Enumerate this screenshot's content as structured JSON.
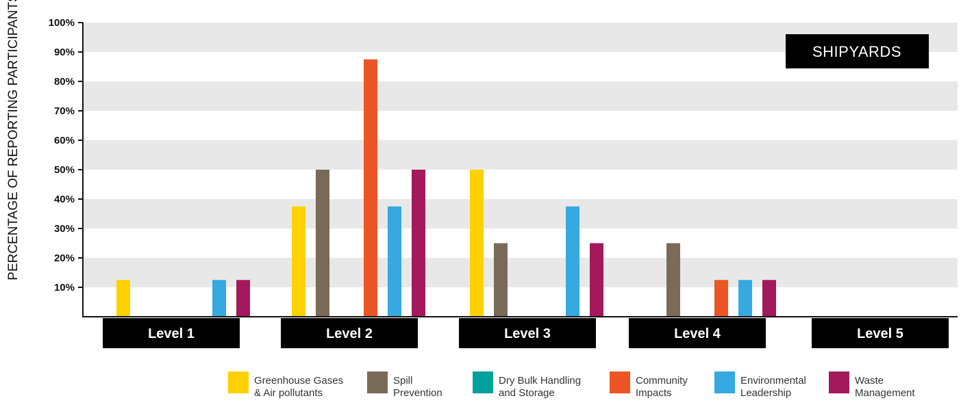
{
  "chart_data": {
    "type": "bar",
    "title": "SHIPYARDS",
    "ylabel": "PERCENTAGE OF REPORTING PARTICIPANTS",
    "ylim": [
      0,
      100
    ],
    "yticks": [
      "10%",
      "20%",
      "30%",
      "40%",
      "50%",
      "60%",
      "70%",
      "80%",
      "90%",
      "100%"
    ],
    "grid": "alternating horizontal bands",
    "legend_position": "bottom",
    "categories": [
      "Level 1",
      "Level 2",
      "Level 3",
      "Level 4",
      "Level 5"
    ],
    "series": [
      {
        "name": "Greenhouse Gases & Air pollutants",
        "legend_lines": [
          "Greenhouse Gases",
          "& Air pollutants"
        ],
        "color": "#FFD100",
        "values": [
          12.5,
          37.5,
          50,
          0,
          0
        ]
      },
      {
        "name": "Spill Prevention",
        "legend_lines": [
          "Spill",
          "Prevention"
        ],
        "color": "#7A6A58",
        "values": [
          0,
          50,
          25,
          25,
          0
        ]
      },
      {
        "name": "Dry Bulk Handling and Storage",
        "legend_lines": [
          "Dry Bulk Handling",
          "and Storage"
        ],
        "color": "#00A19A",
        "values": [
          0,
          0,
          0,
          0,
          0
        ]
      },
      {
        "name": "Community Impacts",
        "legend_lines": [
          "Community",
          "Impacts"
        ],
        "color": "#EC5625",
        "values": [
          0,
          87.5,
          0,
          12.5,
          0
        ]
      },
      {
        "name": "Environmental Leadership",
        "legend_lines": [
          "Environmental",
          "Leadership"
        ],
        "color": "#35A9E0",
        "values": [
          12.5,
          37.5,
          37.5,
          12.5,
          0
        ]
      },
      {
        "name": "Waste Management",
        "legend_lines": [
          "Waste",
          "Management"
        ],
        "color": "#A3195B",
        "values": [
          12.5,
          50,
          25,
          12.5,
          0
        ]
      }
    ]
  }
}
